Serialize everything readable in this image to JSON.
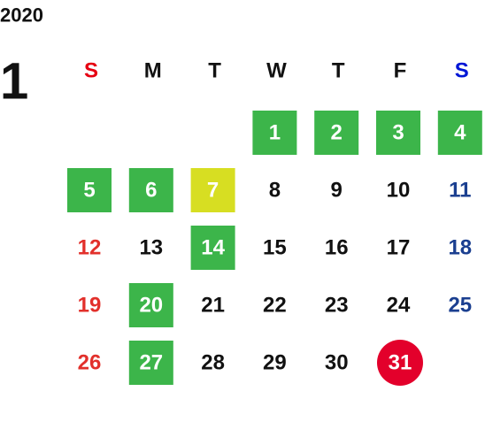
{
  "year": "2020",
  "month": "1",
  "weekdays": [
    {
      "label": "S",
      "color": "#e60012",
      "day_color": "#e2302b"
    },
    {
      "label": "M",
      "color": "#111111",
      "day_color": "#111111"
    },
    {
      "label": "T",
      "color": "#111111",
      "day_color": "#111111"
    },
    {
      "label": "W",
      "color": "#111111",
      "day_color": "#111111"
    },
    {
      "label": "T",
      "color": "#111111",
      "day_color": "#111111"
    },
    {
      "label": "F",
      "color": "#111111",
      "day_color": "#111111"
    },
    {
      "label": "S",
      "color": "#0016d6",
      "day_color": "#1b3f90"
    }
  ],
  "weeks": [
    [
      null,
      null,
      null,
      {
        "label": "1",
        "fill": "#3cb54a"
      },
      {
        "label": "2",
        "fill": "#3cb54a"
      },
      {
        "label": "3",
        "fill": "#3cb54a"
      },
      {
        "label": "4",
        "fill": "#3cb54a"
      }
    ],
    [
      {
        "label": "5",
        "fill": "#3cb54a"
      },
      {
        "label": "6",
        "fill": "#3cb54a"
      },
      {
        "label": "7",
        "fill": "#d7de22"
      },
      {
        "label": "8"
      },
      {
        "label": "9"
      },
      {
        "label": "10"
      },
      {
        "label": "11"
      }
    ],
    [
      {
        "label": "12"
      },
      {
        "label": "13"
      },
      {
        "label": "14",
        "fill": "#3cb54a"
      },
      {
        "label": "15"
      },
      {
        "label": "16"
      },
      {
        "label": "17"
      },
      {
        "label": "18"
      }
    ],
    [
      {
        "label": "19"
      },
      {
        "label": "20",
        "fill": "#3cb54a"
      },
      {
        "label": "21"
      },
      {
        "label": "22"
      },
      {
        "label": "23"
      },
      {
        "label": "24"
      },
      {
        "label": "25"
      }
    ],
    [
      {
        "label": "26"
      },
      {
        "label": "27",
        "fill": "#3cb54a"
      },
      {
        "label": "28"
      },
      {
        "label": "29"
      },
      {
        "label": "30"
      },
      {
        "label": "31",
        "fill": "#e3002b",
        "shape": "circle"
      },
      null
    ]
  ]
}
